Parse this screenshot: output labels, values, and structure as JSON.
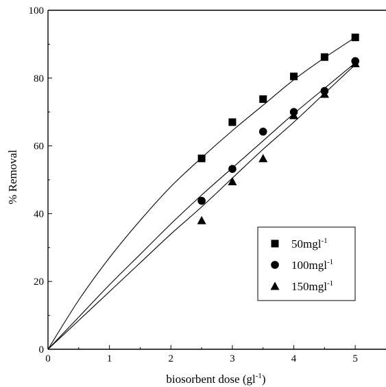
{
  "chart_data": {
    "type": "scatter",
    "xlabel": "biosorbent dose (gl",
    "xlabel_sup": "-1",
    "xlabel_end": ")",
    "ylabel": "% Removal",
    "xlim": [
      0,
      5.5
    ],
    "ylim": [
      0,
      100
    ],
    "x_ticks": [
      "0",
      "1",
      "2",
      "3",
      "4",
      "5"
    ],
    "y_ticks": [
      "0",
      "20",
      "40",
      "60",
      "80",
      "100"
    ],
    "grid": false,
    "legend_position": "lower-right",
    "series": [
      {
        "name": "50mgl",
        "name_sup": "-1",
        "marker": "square",
        "x": [
          2.5,
          3.0,
          3.5,
          4.0,
          4.5,
          5.0
        ],
        "y": [
          56.3,
          67.0,
          73.8,
          80.5,
          86.2,
          92.0
        ],
        "fit": [
          [
            0,
            0
          ],
          [
            0.5,
            14.5
          ],
          [
            1,
            27
          ],
          [
            1.5,
            38
          ],
          [
            2,
            48
          ],
          [
            2.5,
            56.5
          ],
          [
            3,
            64.5
          ],
          [
            3.5,
            72
          ],
          [
            4,
            79.5
          ],
          [
            4.5,
            86
          ],
          [
            5,
            92
          ]
        ]
      },
      {
        "name": "100mgl",
        "name_sup": "-1",
        "marker": "circle",
        "x": [
          2.5,
          3.0,
          3.5,
          4.0,
          4.5,
          5.0
        ],
        "y": [
          43.8,
          53.2,
          64.2,
          70.0,
          76.2,
          85.0
        ],
        "fit": [
          [
            0,
            0
          ],
          [
            0.5,
            9.5
          ],
          [
            1,
            19
          ],
          [
            1.5,
            28
          ],
          [
            2,
            37
          ],
          [
            2.5,
            45.5
          ],
          [
            3,
            53.5
          ],
          [
            3.5,
            61.5
          ],
          [
            4,
            69.5
          ],
          [
            4.5,
            77
          ],
          [
            5,
            84.5
          ]
        ]
      },
      {
        "name": "150mgl",
        "name_sup": "-1",
        "marker": "triangle",
        "x": [
          2.5,
          3.0,
          3.5,
          4.0,
          4.5,
          5.0
        ],
        "y": [
          38.0,
          49.5,
          56.3,
          69.0,
          75.3,
          84.3
        ],
        "fit": [
          [
            0,
            0
          ],
          [
            0.5,
            8.5
          ],
          [
            1,
            17
          ],
          [
            1.5,
            25.5
          ],
          [
            2,
            34
          ],
          [
            2.5,
            42
          ],
          [
            3,
            50.5
          ],
          [
            3.5,
            59
          ],
          [
            4,
            67
          ],
          [
            4.5,
            75.5
          ],
          [
            5,
            84
          ]
        ]
      }
    ]
  }
}
